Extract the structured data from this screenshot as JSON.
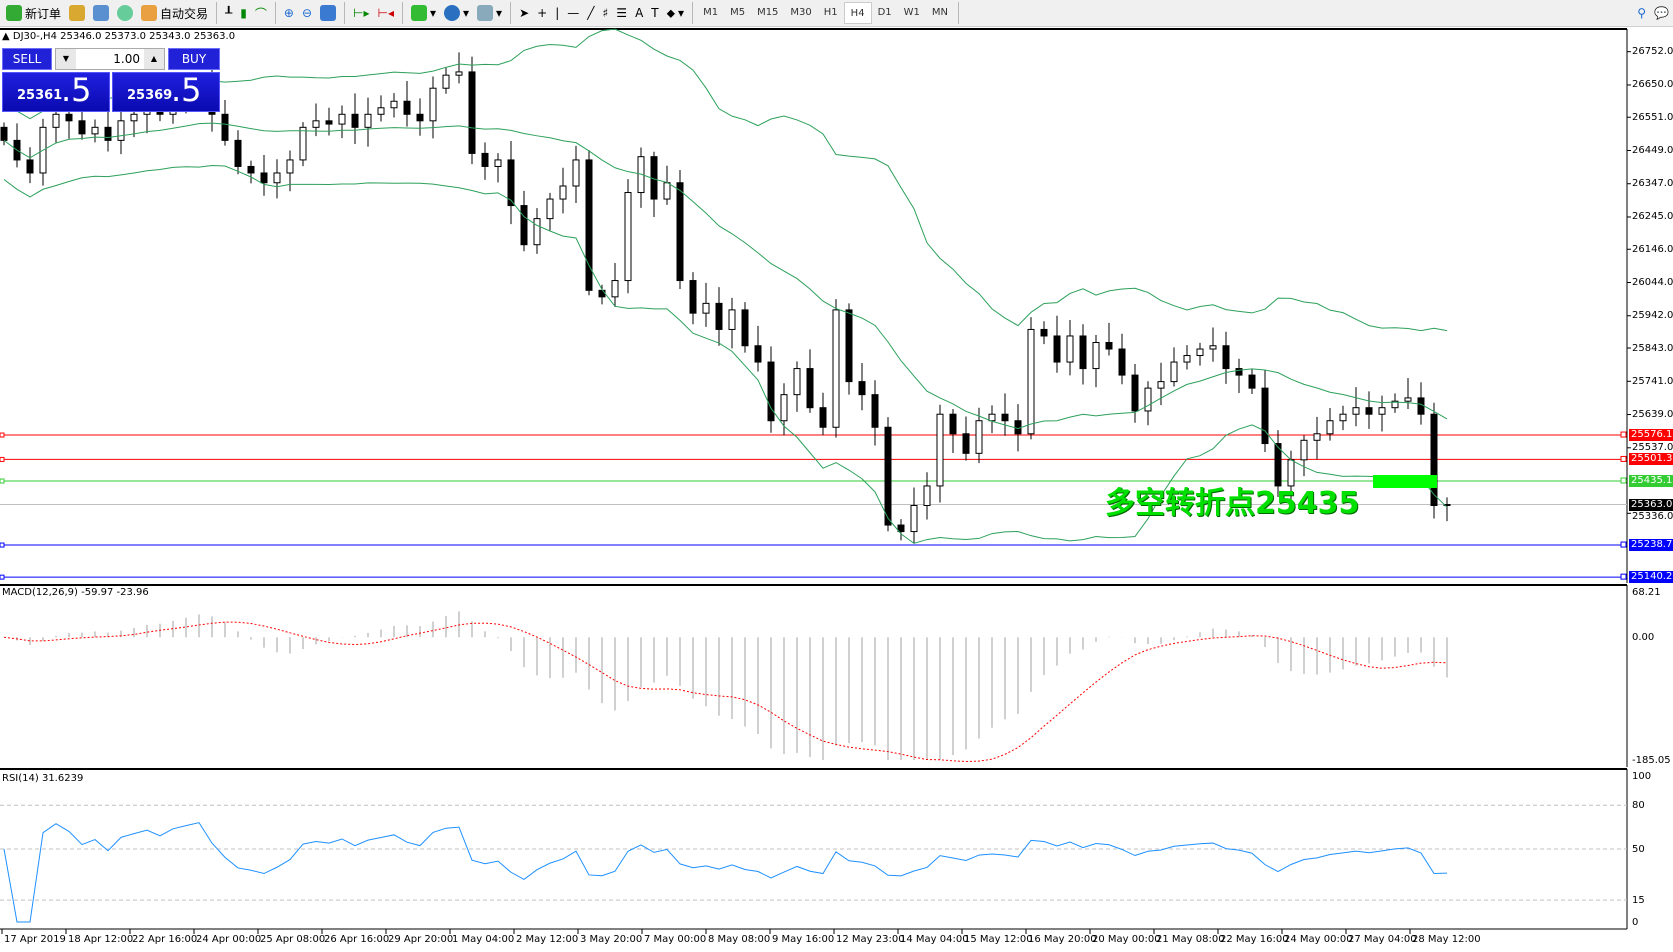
{
  "toolbar": {
    "new_order": "新订单",
    "auto_trading": "自动交易",
    "icons": [
      "new-order-icon",
      "market-watch-icon",
      "navigator-icon",
      "signals-icon",
      "auto-trading-icon",
      "bar-chart-icon",
      "candlestick-icon",
      "line-chart-icon",
      "zoom-in-icon",
      "zoom-out-icon",
      "tile-windows-icon",
      "auto-scroll-icon",
      "chart-shift-icon",
      "indicators-icon",
      "periods-icon",
      "templates-icon",
      "cursor-icon",
      "crosshair-icon",
      "vertical-line-icon",
      "horizontal-line-icon",
      "trendline-icon",
      "fibonacci-icon",
      "fibo-fan-icon",
      "text-icon",
      "text-label-icon",
      "arrows-icon"
    ],
    "timeframes": [
      "M1",
      "M5",
      "M15",
      "M30",
      "H1",
      "H4",
      "D1",
      "W1",
      "MN"
    ],
    "active_timeframe": "H4"
  },
  "chart": {
    "symbol_info": "DJ30-,H4  25346.0 25373.0 25343.0 25363.0",
    "trade_panel": {
      "sell_label": "SELL",
      "buy_label": "BUY",
      "lots": "1.00",
      "sell_price_main": "25361",
      "sell_price_big": ".5",
      "buy_price_main": "25369",
      "buy_price_big": ".5"
    },
    "annotation": "多空转折点25435",
    "price_axis": [
      "26752.0",
      "26650.0",
      "26551.0",
      "26449.0",
      "26347.0",
      "26245.0",
      "26146.0",
      "26044.0",
      "25942.0",
      "25843.0",
      "25741.0",
      "25639.0",
      "25537.0",
      "25336.0"
    ],
    "price_lines": [
      {
        "price": "25576.1",
        "color": "#ff0000"
      },
      {
        "price": "25501.3",
        "color": "#ff0000"
      },
      {
        "price": "25435.1",
        "color": "#33cc33"
      },
      {
        "price": "25363.0",
        "color": "#000000"
      },
      {
        "price": "25238.7",
        "color": "#0000ff"
      },
      {
        "price": "25140.2",
        "color": "#0000ff"
      }
    ],
    "closes": [
      26480,
      26420,
      26380,
      26520,
      26560,
      26540,
      26500,
      26520,
      26480,
      26540,
      26560,
      26580,
      26560,
      26600,
      26620,
      26640,
      26560,
      26480,
      26400,
      26380,
      26350,
      26380,
      26420,
      26520,
      26540,
      26530,
      26560,
      26520,
      26560,
      26580,
      26600,
      26560,
      26540,
      26640,
      26680,
      26690,
      26440,
      26400,
      26420,
      26280,
      26160,
      26240,
      26300,
      26340,
      26420,
      26020,
      26000,
      26050,
      26320,
      26430,
      26300,
      26350,
      26050,
      25950,
      25980,
      25900,
      25960,
      25850,
      25800,
      25620,
      25700,
      25780,
      25660,
      25600,
      25960,
      25740,
      25700,
      25600,
      25300,
      25280,
      25360,
      25420,
      25640,
      25580,
      25520,
      25620,
      25640,
      25620,
      25580,
      25900,
      25880,
      25800,
      25880,
      25780,
      25860,
      25840,
      25760,
      25650,
      25720,
      25740,
      25800,
      25820,
      25840,
      25850,
      25780,
      25760,
      25720,
      25550,
      25420,
      25500,
      25560,
      25580,
      25620,
      25640,
      25660,
      25640,
      25660,
      25680,
      25690,
      25640,
      25360,
      25363
    ],
    "band_color": "#2ca05a"
  },
  "macd": {
    "label": "MACD(12,26,9) -59.97 -23.96",
    "axis": [
      "68.21",
      "0.00",
      "-185.05"
    ],
    "ylim": [
      -185.05,
      68.21
    ],
    "signal_color": "#ff0000",
    "hist_color": "#c0c0c0"
  },
  "rsi": {
    "label": "RSI(14) 31.6239",
    "axis": [
      "100",
      "80",
      "50",
      "15",
      "0"
    ],
    "line_color": "#1e90ff"
  },
  "time_axis": [
    "17 Apr 2019",
    "18 Apr 12:00",
    "22 Apr 16:00",
    "24 Apr 00:00",
    "25 Apr 08:00",
    "26 Apr 16:00",
    "29 Apr 20:00",
    "1 May 04:00",
    "2 May 12:00",
    "3 May 20:00",
    "7 May 00:00",
    "8 May 08:00",
    "9 May 16:00",
    "12 May 23:00",
    "14 May 04:00",
    "15 May 12:00",
    "16 May 20:00",
    "20 May 00:00",
    "21 May 08:00",
    "22 May 16:00",
    "24 May 00:00",
    "27 May 04:00",
    "28 May 12:00"
  ]
}
